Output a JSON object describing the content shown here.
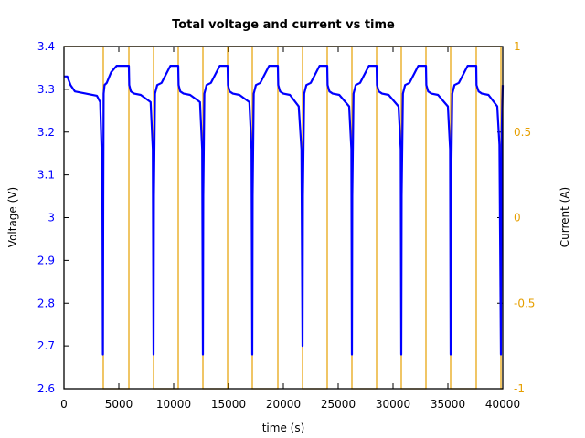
{
  "chart_data": {
    "type": "line",
    "title": "Total voltage and current vs time",
    "xlabel": "time (s)",
    "ylabel": "Voltage (V)",
    "y2label": "Current (A)",
    "xlim": [
      0,
      40000
    ],
    "ylim": [
      2.6,
      3.4
    ],
    "y2lim": [
      -1,
      1
    ],
    "xticks": [
      "0",
      "5000",
      "10000",
      "15000",
      "20000",
      "25000",
      "30000",
      "35000",
      "40000"
    ],
    "yticks": [
      "2.6",
      "2.7",
      "2.8",
      "2.9",
      "3",
      "3.1",
      "3.2",
      "3.3",
      "3.4"
    ],
    "y2ticks": [
      "-1",
      "-0.5",
      "0",
      "0.5",
      "1"
    ],
    "grid": false,
    "colors": {
      "voltage": "#0000ff",
      "current": "#e69f00",
      "axis": "#000000"
    },
    "series": [
      {
        "name": "Voltage (V)",
        "axis": "left",
        "x": [
          0,
          300,
          600,
          1000,
          2000,
          3000,
          3300,
          3500,
          3550,
          3583,
          3620,
          3700,
          3900,
          4300,
          4800,
          5100,
          5400,
          5917,
          5950,
          6100,
          6400,
          7000,
          7900,
          8100,
          8167,
          8200,
          8300,
          8500,
          8900,
          9400,
          9700,
          10000,
          10417,
          10450,
          10600,
          10900,
          11500,
          12400,
          12600,
          12667,
          12700,
          12800,
          13000,
          13400,
          13900,
          14200,
          14500,
          14917,
          14950,
          15100,
          15400,
          16000,
          16900,
          17100,
          17167,
          17200,
          17300,
          17500,
          17900,
          18400,
          18700,
          19000,
          19500,
          19530,
          19700,
          20000,
          20600,
          21400,
          21650,
          21750,
          21780,
          21900,
          22100,
          22500,
          23000,
          23300,
          23600,
          24000,
          24030,
          24200,
          24500,
          25100,
          26000,
          26200,
          26250,
          26280,
          26400,
          26600,
          27000,
          27500,
          27800,
          28100,
          28500,
          28530,
          28700,
          29000,
          29600,
          30500,
          30700,
          30750,
          30780,
          30900,
          31100,
          31500,
          32000,
          32300,
          32600,
          33000,
          33030,
          33200,
          33500,
          34100,
          35000,
          35200,
          35250,
          35280,
          35400,
          35600,
          36000,
          36500,
          36800,
          37100,
          37583,
          37610,
          37800,
          38100,
          38700,
          39500,
          39700,
          39833,
          39900,
          40000
        ],
        "y": [
          3.33,
          3.33,
          3.31,
          3.295,
          3.29,
          3.285,
          3.27,
          3.1,
          2.68,
          3.05,
          3.29,
          3.31,
          3.315,
          3.34,
          3.355,
          3.355,
          3.355,
          3.355,
          3.31,
          3.295,
          3.29,
          3.287,
          3.27,
          3.16,
          2.68,
          3.05,
          3.29,
          3.31,
          3.315,
          3.34,
          3.355,
          3.355,
          3.355,
          3.31,
          3.295,
          3.29,
          3.287,
          3.27,
          3.16,
          2.68,
          3.05,
          3.29,
          3.31,
          3.315,
          3.34,
          3.355,
          3.355,
          3.355,
          3.31,
          3.295,
          3.29,
          3.287,
          3.27,
          3.16,
          2.68,
          3.05,
          3.29,
          3.31,
          3.315,
          3.34,
          3.355,
          3.355,
          3.355,
          3.31,
          3.295,
          3.29,
          3.287,
          3.26,
          3.16,
          2.7,
          3.05,
          3.29,
          3.31,
          3.315,
          3.34,
          3.355,
          3.355,
          3.355,
          3.31,
          3.295,
          3.29,
          3.287,
          3.26,
          3.16,
          2.68,
          3.05,
          3.29,
          3.31,
          3.315,
          3.34,
          3.355,
          3.355,
          3.355,
          3.31,
          3.295,
          3.29,
          3.287,
          3.26,
          3.16,
          2.68,
          3.05,
          3.29,
          3.31,
          3.315,
          3.34,
          3.355,
          3.355,
          3.355,
          3.31,
          3.295,
          3.29,
          3.287,
          3.26,
          3.16,
          2.68,
          3.05,
          3.29,
          3.31,
          3.315,
          3.34,
          3.355,
          3.355,
          3.355,
          3.31,
          3.295,
          3.29,
          3.287,
          3.26,
          3.17,
          2.68,
          3.2,
          3.31
        ]
      },
      {
        "name": "Current (A)",
        "axis": "right",
        "type": "step",
        "switch_times": [
          3583,
          5917,
          8167,
          10417,
          12667,
          14917,
          17167,
          19500,
          21750,
          24000,
          26250,
          28500,
          30750,
          33000,
          35250,
          37583,
          39833
        ],
        "levels": [
          1,
          -1
        ]
      }
    ]
  }
}
